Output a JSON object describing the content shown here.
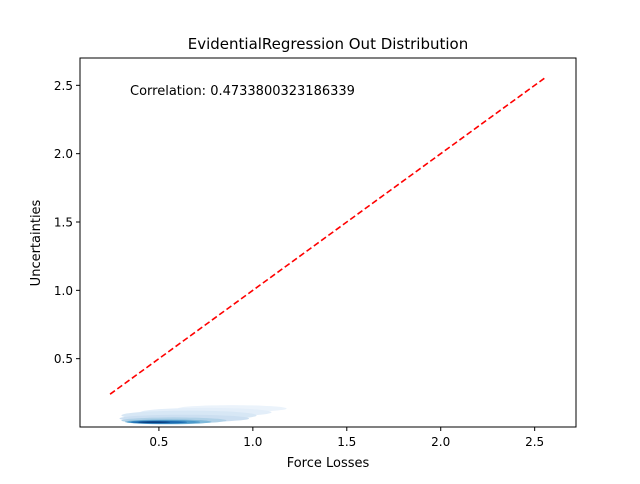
{
  "chart_data": {
    "type": "heatmap",
    "title": "EvidentialRegression Out Distribution",
    "xlabel": "Force Losses",
    "ylabel": "Uncertainties",
    "xlim": [
      0.08,
      2.72
    ],
    "ylim": [
      0.0,
      2.7
    ],
    "x_ticks": [
      0.5,
      1.0,
      1.5,
      2.0,
      2.5
    ],
    "x_tick_labels": [
      "0.5",
      "1.0",
      "1.5",
      "2.0",
      "2.5"
    ],
    "y_ticks": [
      0.5,
      1.0,
      1.5,
      2.0,
      2.5
    ],
    "y_tick_labels": [
      "0.5",
      "1.0",
      "1.5",
      "2.0",
      "2.5"
    ],
    "grid": false,
    "annotation": "Correlation: 0.4733800323186339",
    "reference_line": {
      "x": [
        0.24,
        2.56
      ],
      "y": [
        0.24,
        2.56
      ],
      "color": "#ff0000",
      "style": "dashed"
    },
    "density_levels": [
      {
        "x0": 0.6,
        "x1": 1.18,
        "y0": 0.11,
        "y1": 0.16,
        "level": 0.06
      },
      {
        "x0": 0.4,
        "x1": 1.1,
        "y0": 0.075,
        "y1": 0.14,
        "level": 0.1
      },
      {
        "x0": 0.3,
        "x1": 1.02,
        "y0": 0.05,
        "y1": 0.12,
        "level": 0.16
      },
      {
        "x0": 0.29,
        "x1": 0.98,
        "y0": 0.035,
        "y1": 0.09,
        "level": 0.22
      },
      {
        "x0": 0.3,
        "x1": 0.86,
        "y0": 0.025,
        "y1": 0.07,
        "level": 0.32
      },
      {
        "x0": 0.32,
        "x1": 0.78,
        "y0": 0.02,
        "y1": 0.055,
        "level": 0.45
      },
      {
        "x0": 0.33,
        "x1": 0.72,
        "y0": 0.022,
        "y1": 0.05,
        "level": 0.6
      },
      {
        "x0": 0.35,
        "x1": 0.65,
        "y0": 0.026,
        "y1": 0.045,
        "level": 0.78
      },
      {
        "x0": 0.39,
        "x1": 0.56,
        "y0": 0.029,
        "y1": 0.041,
        "level": 0.95
      }
    ],
    "colormap": "Blues"
  }
}
